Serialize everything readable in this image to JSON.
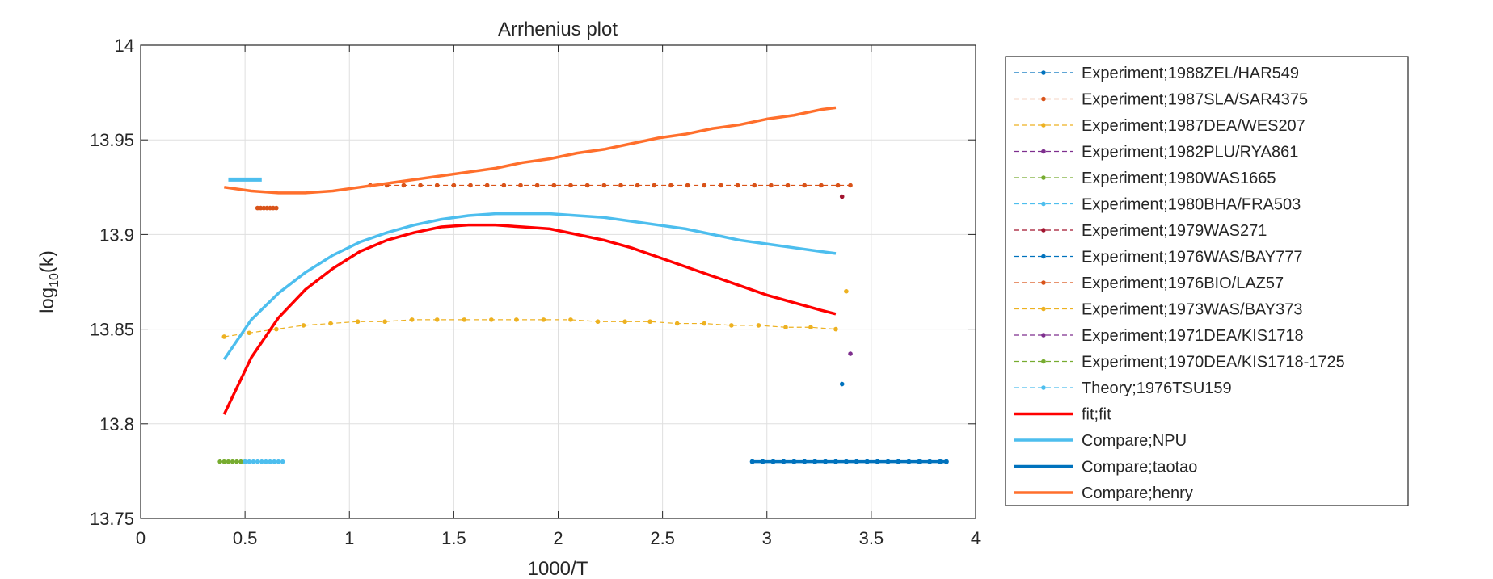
{
  "chart_data": {
    "type": "line",
    "title": "Arrhenius plot",
    "xlabel": "1000/T",
    "ylabel_base": "log",
    "ylabel_sub": "10",
    "ylabel_arg": "(k)",
    "xlim": [
      0,
      4
    ],
    "ylim": [
      13.75,
      14
    ],
    "xticks": [
      0,
      0.5,
      1,
      1.5,
      2,
      2.5,
      3,
      3.5,
      4
    ],
    "xtick_labels": [
      "0",
      "0.5",
      "1",
      "1.5",
      "2",
      "2.5",
      "3",
      "3.5",
      "4"
    ],
    "yticks": [
      13.75,
      13.8,
      13.85,
      13.9,
      13.95,
      14
    ],
    "ytick_labels": [
      "13.75",
      "13.8",
      "13.85",
      "13.9",
      "13.95",
      "14"
    ],
    "grid": true,
    "legend_position": "outside-right",
    "series": [
      {
        "name": "Experiment;1988ZEL/HAR549",
        "style": "dashed-dot",
        "color": "#0072BD",
        "x": [],
        "y": []
      },
      {
        "name": "Experiment;1987SLA/SAR4375",
        "style": "dashed-dot",
        "color": "#D95319",
        "x": [
          1.1,
          1.18,
          1.26,
          1.34,
          1.42,
          1.5,
          1.58,
          1.66,
          1.74,
          1.82,
          1.9,
          1.98,
          2.06,
          2.14,
          2.22,
          2.3,
          2.38,
          2.46,
          2.54,
          2.62,
          2.7,
          2.78,
          2.86,
          2.94,
          3.02,
          3.1,
          3.18,
          3.26,
          3.34,
          3.4
        ],
        "y": [
          13.926,
          13.926,
          13.926,
          13.926,
          13.926,
          13.926,
          13.926,
          13.926,
          13.926,
          13.926,
          13.926,
          13.926,
          13.926,
          13.926,
          13.926,
          13.926,
          13.926,
          13.926,
          13.926,
          13.926,
          13.926,
          13.926,
          13.926,
          13.926,
          13.926,
          13.926,
          13.926,
          13.926,
          13.926,
          13.926
        ]
      },
      {
        "name": "Experiment;1987DEA/WES207",
        "style": "dashed-dot",
        "color": "#EDB120",
        "x": [
          3.38
        ],
        "y": [
          13.87
        ]
      },
      {
        "name": "Experiment;1982PLU/RYA861",
        "style": "dashed-dot",
        "color": "#7E2F8E",
        "x": [
          3.4
        ],
        "y": [
          13.837
        ]
      },
      {
        "name": "Experiment;1980WAS1665",
        "style": "dashed-dot",
        "color": "#77AC30",
        "x": [
          0.38,
          0.4,
          0.42,
          0.44,
          0.46,
          0.48,
          0.5
        ],
        "y": [
          13.78,
          13.78,
          13.78,
          13.78,
          13.78,
          13.78,
          13.78
        ]
      },
      {
        "name": "Experiment;1980BHA/FRA503",
        "style": "dashed-dot",
        "color": "#4DBEEE",
        "x": [
          0.5,
          0.52,
          0.54,
          0.56,
          0.58,
          0.6,
          0.62,
          0.64,
          0.66,
          0.68
        ],
        "y": [
          13.78,
          13.78,
          13.78,
          13.78,
          13.78,
          13.78,
          13.78,
          13.78,
          13.78,
          13.78
        ]
      },
      {
        "name": "Experiment;1979WAS271",
        "style": "dashed-dot",
        "color": "#A2142F",
        "x": [
          3.36
        ],
        "y": [
          13.92
        ]
      },
      {
        "name": "Experiment;1976WAS/BAY777",
        "style": "dashed-dot",
        "color": "#0072BD",
        "x": [
          3.36
        ],
        "y": [
          13.821
        ]
      },
      {
        "name": "Experiment;1976BIO/LAZ57",
        "style": "dashed-dot",
        "color": "#D95319",
        "x": [
          0.56,
          0.575,
          0.59,
          0.605,
          0.62,
          0.635,
          0.65
        ],
        "y": [
          13.914,
          13.914,
          13.914,
          13.914,
          13.914,
          13.914,
          13.914
        ]
      },
      {
        "name": "Experiment;1973WAS/BAY373",
        "style": "dashed-dot",
        "color": "#EDB120",
        "x": [
          0.4,
          0.52,
          0.65,
          0.78,
          0.91,
          1.04,
          1.17,
          1.3,
          1.42,
          1.55,
          1.68,
          1.8,
          1.93,
          2.06,
          2.19,
          2.32,
          2.44,
          2.57,
          2.7,
          2.83,
          2.96,
          3.09,
          3.21,
          3.33
        ],
        "y": [
          13.846,
          13.848,
          13.85,
          13.852,
          13.853,
          13.854,
          13.854,
          13.855,
          13.855,
          13.855,
          13.855,
          13.855,
          13.855,
          13.855,
          13.854,
          13.854,
          13.854,
          13.853,
          13.853,
          13.852,
          13.852,
          13.851,
          13.851,
          13.85
        ]
      },
      {
        "name": "Experiment;1971DEA/KIS1718",
        "style": "dashed-dot",
        "color": "#7E2F8E",
        "x": [],
        "y": []
      },
      {
        "name": "Experiment;1970DEA/KIS1718-1725",
        "style": "dashed-dot",
        "color": "#77AC30",
        "x": [],
        "y": []
      },
      {
        "name": "Theory;1976TSU159",
        "style": "dashed-dot",
        "color": "#4DBEEE",
        "x": [],
        "y": []
      },
      {
        "name": "fit;fit",
        "style": "solid",
        "color": "#FF0000",
        "x": [
          0.4,
          0.53,
          0.66,
          0.79,
          0.92,
          1.05,
          1.18,
          1.31,
          1.44,
          1.57,
          1.7,
          1.83,
          1.96,
          2.09,
          2.22,
          2.35,
          2.48,
          2.61,
          2.74,
          2.87,
          3.0,
          3.13,
          3.26,
          3.33
        ],
        "y": [
          13.805,
          13.835,
          13.856,
          13.871,
          13.882,
          13.891,
          13.897,
          13.901,
          13.904,
          13.905,
          13.905,
          13.904,
          13.903,
          13.9,
          13.897,
          13.893,
          13.888,
          13.883,
          13.878,
          13.873,
          13.868,
          13.864,
          13.86,
          13.858
        ]
      },
      {
        "name": "Compare;NPU",
        "style": "solid",
        "color": "#4DBEEE",
        "x": [
          0.4,
          0.53,
          0.66,
          0.79,
          0.92,
          1.05,
          1.18,
          1.31,
          1.44,
          1.57,
          1.7,
          1.83,
          1.96,
          2.09,
          2.22,
          2.35,
          2.48,
          2.61,
          2.74,
          2.87,
          3.0,
          3.13,
          3.26,
          3.33
        ],
        "y": [
          13.834,
          13.855,
          13.869,
          13.88,
          13.889,
          13.896,
          13.901,
          13.905,
          13.908,
          13.91,
          13.911,
          13.911,
          13.911,
          13.91,
          13.909,
          13.907,
          13.905,
          13.903,
          13.9,
          13.897,
          13.895,
          13.893,
          13.891,
          13.89
        ]
      },
      {
        "name": "Compare;taotao",
        "style": "solid",
        "color": "#0072BD",
        "x": [
          2.93,
          2.98,
          3.03,
          3.08,
          3.13,
          3.18,
          3.23,
          3.28,
          3.33,
          3.38,
          3.43,
          3.48,
          3.53,
          3.58,
          3.63,
          3.68,
          3.73,
          3.78,
          3.83,
          3.86
        ],
        "y": [
          13.78,
          13.78,
          13.78,
          13.78,
          13.78,
          13.78,
          13.78,
          13.78,
          13.78,
          13.78,
          13.78,
          13.78,
          13.78,
          13.78,
          13.78,
          13.78,
          13.78,
          13.78,
          13.78,
          13.78
        ]
      },
      {
        "name": "Compare;henry",
        "style": "solid",
        "color": "#FF6F2C",
        "x": [
          0.4,
          0.53,
          0.66,
          0.79,
          0.92,
          1.05,
          1.18,
          1.31,
          1.44,
          1.57,
          1.7,
          1.83,
          1.96,
          2.09,
          2.22,
          2.35,
          2.48,
          2.61,
          2.74,
          2.87,
          3.0,
          3.13,
          3.26,
          3.33
        ],
        "y": [
          13.925,
          13.923,
          13.922,
          13.922,
          13.923,
          13.925,
          13.927,
          13.929,
          13.931,
          13.933,
          13.935,
          13.938,
          13.94,
          13.943,
          13.945,
          13.948,
          13.951,
          13.953,
          13.956,
          13.958,
          13.961,
          13.963,
          13.966,
          13.967
        ]
      }
    ],
    "extra_marks": [
      {
        "series": "Compare;NPU",
        "x": [
          0.42,
          0.58
        ],
        "y": [
          13.929,
          13.929
        ]
      }
    ]
  }
}
